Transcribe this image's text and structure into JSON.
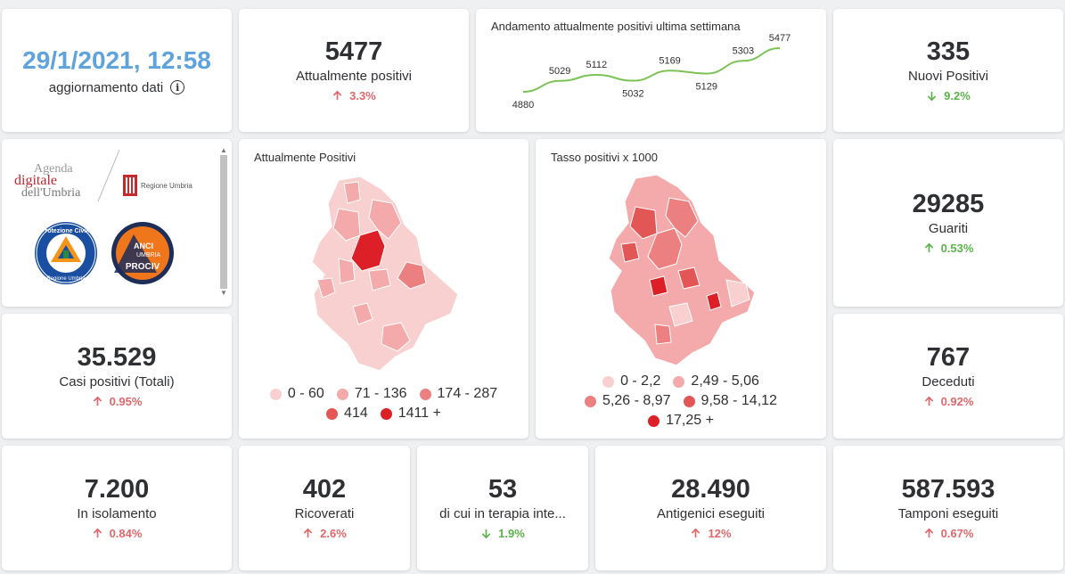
{
  "header": {
    "date": "29/1/2021, 12:58",
    "update_label": "aggiornamento dati",
    "info_icon": "info-icon"
  },
  "kpis": {
    "attualmente_positivi": {
      "value": "5477",
      "label": "Attualmente positivi",
      "change": "3.3%",
      "direction": "up"
    },
    "nuovi_positivi": {
      "value": "335",
      "label": "Nuovi Positivi",
      "change": "9.2%",
      "direction": "down"
    },
    "guariti": {
      "value": "29285",
      "label": "Guariti",
      "change": "0.53%",
      "direction": "up"
    },
    "deceduti": {
      "value": "767",
      "label": "Deceduti",
      "change": "0.92%",
      "direction": "up"
    },
    "casi_totali": {
      "value": "35.529",
      "label": "Casi positivi (Totali)",
      "change": "0.95%",
      "direction": "up"
    },
    "isolamento": {
      "value": "7.200",
      "label": "In isolamento",
      "change": "0.84%",
      "direction": "up"
    },
    "ricoverati": {
      "value": "402",
      "label": "Ricoverati",
      "change": "2.6%",
      "direction": "up"
    },
    "terapia_intensiva": {
      "value": "53",
      "label": "di cui in terapia inte...",
      "change": "1.9%",
      "direction": "down"
    },
    "antigenici": {
      "value": "28.490",
      "label": "Antigenici eseguiti",
      "change": "12%",
      "direction": "up"
    },
    "tamponi": {
      "value": "587.593",
      "label": "Tamponi eseguiti",
      "change": "0.67%",
      "direction": "up"
    }
  },
  "trend": {
    "title": "Andamento attualmente positivi ultima settimana",
    "line_color": "#7cc257"
  },
  "chart_data": {
    "type": "line",
    "title": "Andamento attualmente positivi ultima settimana",
    "x": [
      1,
      2,
      3,
      4,
      5,
      6,
      7,
      8
    ],
    "series": [
      {
        "values": [
          4880,
          5029,
          5112,
          5032,
          5169,
          5129,
          5303,
          5477
        ]
      }
    ],
    "data_labels": [
      "4880",
      "5029",
      "5112",
      "5032",
      "5169",
      "5129",
      "5303",
      "5477"
    ],
    "grid": false
  },
  "logos": {
    "agenda_line1": "Agenda",
    "agenda_line2": "digitale",
    "agenda_line3": "dell'Umbria",
    "regione": "Regione Umbria",
    "protezione_top": "Protezione Civile",
    "protezione_bottom": "Regione Umbria",
    "anci_line1": "ANCI",
    "anci_line2": "UMBRIA",
    "anci_line3": "PROCIV"
  },
  "map_positivi": {
    "title": "Attualmente Positivi",
    "legend": [
      {
        "label": "0 - 60",
        "color": "#f9d0d0"
      },
      {
        "label": "71 - 136",
        "color": "#f4aaaa"
      },
      {
        "label": "174 - 287",
        "color": "#ec7f80"
      },
      {
        "label": "414",
        "color": "#e35656"
      },
      {
        "label": "1411 +",
        "color": "#dd2027"
      }
    ]
  },
  "map_tasso": {
    "title": "Tasso positivi x 1000",
    "legend": [
      {
        "label": "0 - 2,2",
        "color": "#f9d0d0"
      },
      {
        "label": "2,49 - 5,06",
        "color": "#f4aaaa"
      },
      {
        "label": "5,26 - 8,97",
        "color": "#ec7f80"
      },
      {
        "label": "9,58 - 14,12",
        "color": "#e35656"
      },
      {
        "label": "17,25 +",
        "color": "#dd2027"
      }
    ]
  },
  "colors": {
    "up": "#e0686a",
    "down": "#5bb44a",
    "date": "#5ea3dc"
  }
}
